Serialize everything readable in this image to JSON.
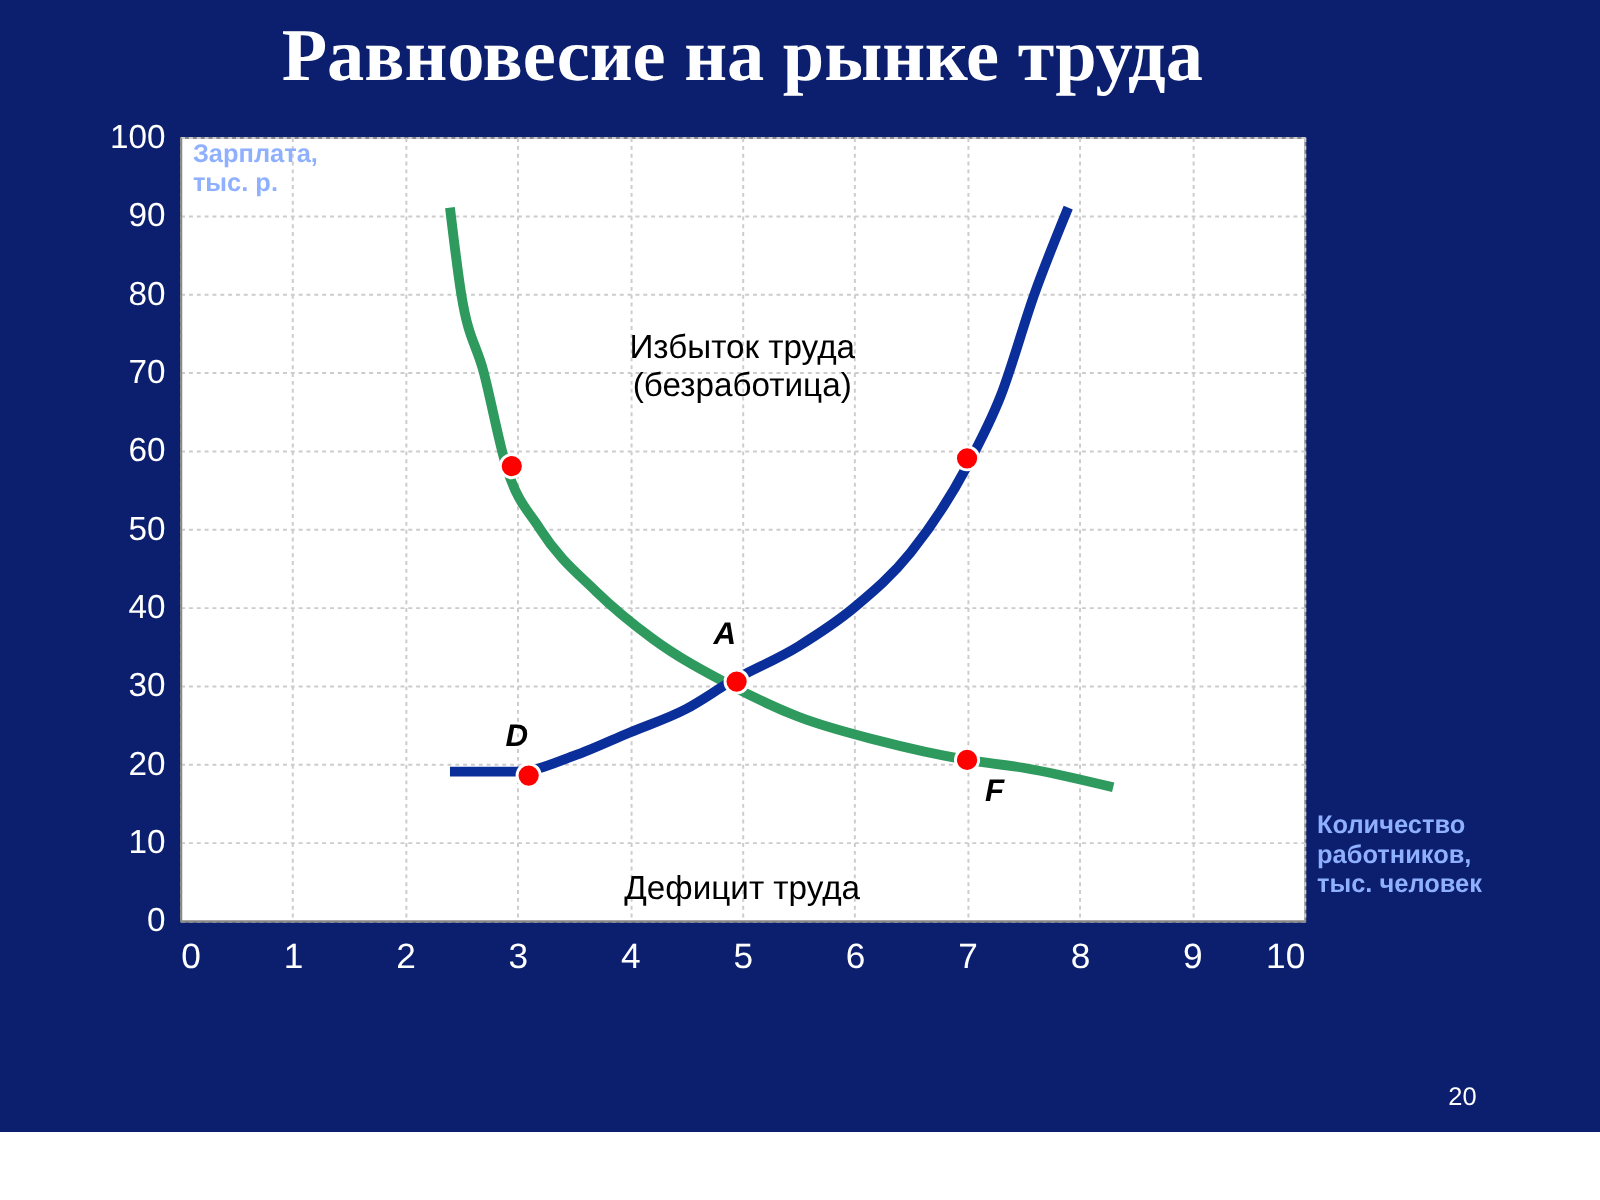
{
  "chart_data": {
    "type": "line",
    "title": "Равновесие на рынке труда",
    "ylabel": "Зарплата, тыс. р.",
    "xlabel": "Количество работников, тыс. человек",
    "xlim": [
      0,
      10
    ],
    "xticks": [
      0,
      1,
      2,
      3,
      4,
      5,
      6,
      7,
      8,
      9,
      10
    ],
    "ylim": [
      0,
      100
    ],
    "yticks": [
      0,
      10,
      20,
      30,
      40,
      50,
      60,
      70,
      80,
      90,
      100
    ],
    "grid": true,
    "line_style": "solid",
    "series": [
      {
        "color": "#2e9a5e",
        "x": [
          2.4,
          2.5,
          2.7,
          2.9,
          3.2,
          3.7,
          4.2,
          4.9,
          5.5,
          6.2,
          7,
          7.5,
          8.3
        ],
        "values": [
          91,
          80,
          70,
          58,
          50,
          42,
          36,
          30,
          26,
          23,
          20.5,
          19.5,
          17
        ]
      },
      {
        "color": "#0b2f9a",
        "x": [
          2.4,
          3,
          3.5,
          4,
          4.5,
          4.9,
          5.5,
          6,
          6.5,
          7,
          7.3,
          7.6,
          7.9
        ],
        "values": [
          19,
          19,
          21,
          24,
          27,
          30.5,
          35,
          40,
          47,
          58,
          67,
          80,
          91
        ]
      },
      {
        "type": "scatter",
        "color": "#ff0000",
        "x": [
          2.95,
          7,
          4.95,
          3.1,
          7
        ],
        "values": [
          58,
          59,
          30.5,
          18.5,
          20.5
        ]
      }
    ],
    "annotations": [
      "Избыток труда\n(безработица)",
      "Дефицит труда",
      {
        "text": "A",
        "x": 4.95,
        "y": 30.5
      },
      {
        "text": "D",
        "x": 3.1,
        "y": 18.5
      },
      {
        "text": "F",
        "x": 7,
        "y": 20.5
      },
      "20"
    ]
  }
}
